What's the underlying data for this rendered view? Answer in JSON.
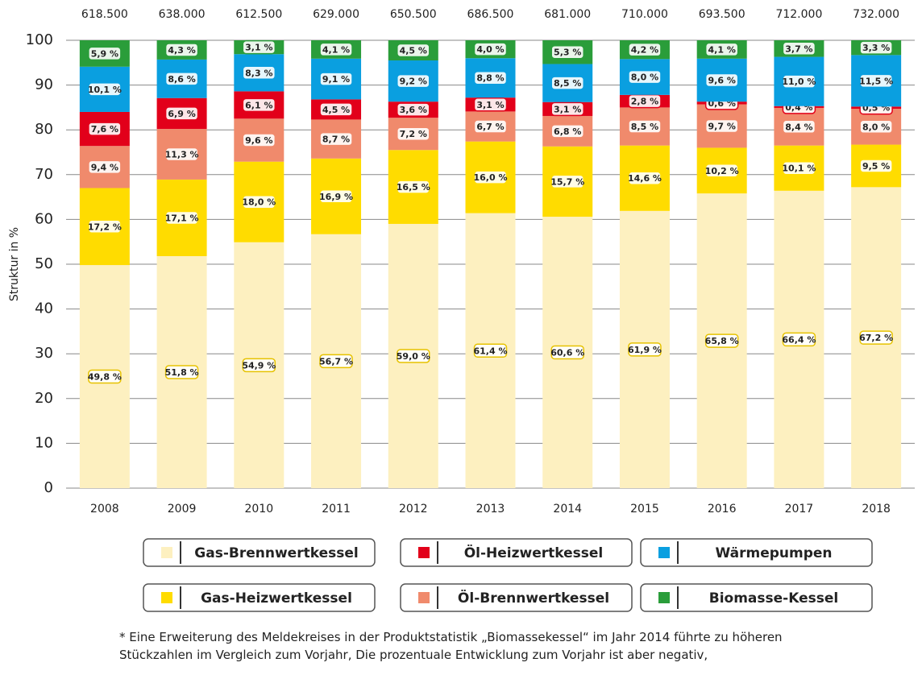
{
  "chart_data": {
    "type": "stacked_bar",
    "y_label": "Struktur in %",
    "categories": [
      "2008",
      "2009",
      "2010",
      "2011",
      "2012",
      "2013",
      "2014",
      "2015",
      "2016",
      "2017",
      "2018"
    ],
    "totals": [
      {
        "value": 618500,
        "label": "618.500"
      },
      {
        "value": 638000,
        "label": "638.000"
      },
      {
        "value": 612500,
        "label": "612.500"
      },
      {
        "value": 629000,
        "label": "629.000"
      },
      {
        "value": 650500,
        "label": "650.500"
      },
      {
        "value": 686500,
        "label": "686.500"
      },
      {
        "value": 681000,
        "label": "681.000"
      },
      {
        "value": 710000,
        "label": "710.000"
      },
      {
        "value": 693500,
        "label": "693.500"
      },
      {
        "value": 712000,
        "label": "712.000"
      },
      {
        "value": 732000,
        "label": "732.000"
      }
    ],
    "series": [
      {
        "name": "Gas-Brennwertkessel",
        "color": "#fdf0c0",
        "values": [
          49.8,
          51.8,
          54.9,
          56.7,
          59.0,
          61.4,
          60.6,
          61.9,
          65.8,
          66.4,
          67.2
        ],
        "value_labels": [
          "49,8 %",
          "51,8 %",
          "54,9 %",
          "56,7 %",
          "59,0 %",
          "61,4 %",
          "60,6 %",
          "61,9 %",
          "65,8 %",
          "66,4 %",
          "67,2 %"
        ]
      },
      {
        "name": "Gas-Heizwertkessel",
        "color": "#ffdc00",
        "values": [
          17.2,
          17.1,
          18.0,
          16.9,
          16.5,
          16.0,
          15.7,
          14.6,
          10.2,
          10.1,
          9.5
        ],
        "value_labels": [
          "17,2 %",
          "17,1 %",
          "18,0 %",
          "16,9 %",
          "16,5 %",
          "16,0 %",
          "15,7 %",
          "14,6 %",
          "10,2 %",
          "10,1 %",
          "9,5 %"
        ]
      },
      {
        "name": "Öl-Brennwertkessel",
        "color": "#f08a6c",
        "values": [
          9.4,
          11.3,
          9.6,
          8.7,
          7.2,
          6.7,
          6.8,
          8.5,
          9.7,
          8.4,
          8.0
        ],
        "value_labels": [
          "9,4 %",
          "11,3 %",
          "9,6 %",
          "8,7 %",
          "7,2 %",
          "6,7 %",
          "6,8 %",
          "8,5 %",
          "9,7 %",
          "8,4 %",
          "8,0 %"
        ]
      },
      {
        "name": "Öl-Heizwertkessel",
        "color": "#e2001a",
        "values": [
          7.6,
          6.9,
          6.1,
          4.5,
          3.6,
          3.1,
          3.1,
          2.8,
          0.6,
          0.4,
          0.5
        ],
        "value_labels": [
          "7,6 %",
          "6,9 %",
          "6,1 %",
          "4,5 %",
          "3,6 %",
          "3,1 %",
          "3,1 %",
          "2,8 %",
          "0,6 %",
          "0,4 %",
          "0,5 %"
        ]
      },
      {
        "name": "Wärmepumpen",
        "color": "#0a9fe0",
        "values": [
          10.1,
          8.6,
          8.3,
          9.1,
          9.2,
          8.8,
          8.5,
          8.0,
          9.6,
          11.0,
          11.5
        ],
        "value_labels": [
          "10,1 %",
          "8,6 %",
          "8,3 %",
          "9,1 %",
          "9,2 %",
          "8,8 %",
          "8,5 %",
          "8,0 %",
          "9,6 %",
          "11,0 %",
          "11,5 %"
        ]
      },
      {
        "name": "Biomasse-Kessel",
        "color": "#2a9d3a",
        "values": [
          5.9,
          4.3,
          3.1,
          4.1,
          4.5,
          4.0,
          5.3,
          4.2,
          4.1,
          3.7,
          3.3
        ],
        "value_labels": [
          "5,9 %",
          "4,3 %",
          "3,1 %",
          "4,1 %",
          "4,5 %",
          "4,0 %",
          "5,3 %",
          "4,2 %",
          "4,1 %",
          "3,7 %",
          "3,3 %"
        ]
      }
    ],
    "ylim": [
      0,
      100
    ],
    "yticks": [
      0,
      10,
      20,
      30,
      40,
      50,
      60,
      70,
      80,
      90,
      100
    ],
    "grid": true,
    "footnote": [
      "* Eine Erweiterung des Meldekreises in der Produktstatistik „Biomassekessel“ im Jahr 2014 führte zu höheren",
      "Stückzahlen im Vergleich zum Vorjahr, Die prozentuale Entwicklung zum Vorjahr ist aber negativ,"
    ]
  }
}
